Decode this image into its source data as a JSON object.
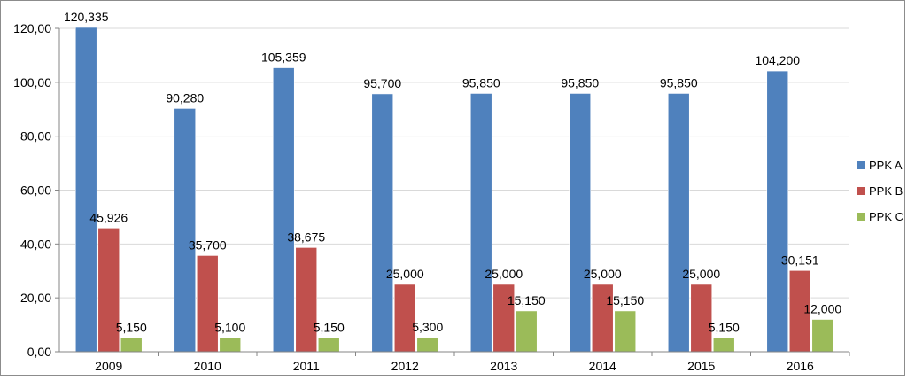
{
  "chart_data": {
    "type": "bar",
    "title": "",
    "xlabel": "",
    "ylabel": "",
    "ylim": [
      0,
      120
    ],
    "yticks": [
      "0,00",
      "20,00",
      "40,00",
      "60,00",
      "80,00",
      "100,00",
      "120,00"
    ],
    "grid": true,
    "legend_position": "right",
    "categories": [
      "2009",
      "2010",
      "2011",
      "2012",
      "2013",
      "2014",
      "2015",
      "2016"
    ],
    "series": [
      {
        "name": "PPK A",
        "color": "#4f81bd",
        "values": [
          120.335,
          90.28,
          105.359,
          95.7,
          95.85,
          95.85,
          95.85,
          104.2
        ],
        "labels": [
          "120,335",
          "90,280",
          "105,359",
          "95,700",
          "95,850",
          "95,850",
          "95,850",
          "104,200"
        ]
      },
      {
        "name": "PPK B",
        "color": "#c0504d",
        "values": [
          45.926,
          35.7,
          38.675,
          25.0,
          25.0,
          25.0,
          25.0,
          30.151
        ],
        "labels": [
          "45,926",
          "35,700",
          "38,675",
          "25,000",
          "25,000",
          "25,000",
          "25,000",
          "30,151"
        ]
      },
      {
        "name": "PPK C",
        "color": "#9bbb59",
        "values": [
          5.15,
          5.1,
          5.15,
          5.3,
          15.15,
          15.15,
          5.15,
          12.0
        ],
        "labels": [
          "5,150",
          "5,100",
          "5,150",
          "5,300",
          "15,150",
          "15,150",
          "5,150",
          "12,000"
        ]
      }
    ]
  }
}
